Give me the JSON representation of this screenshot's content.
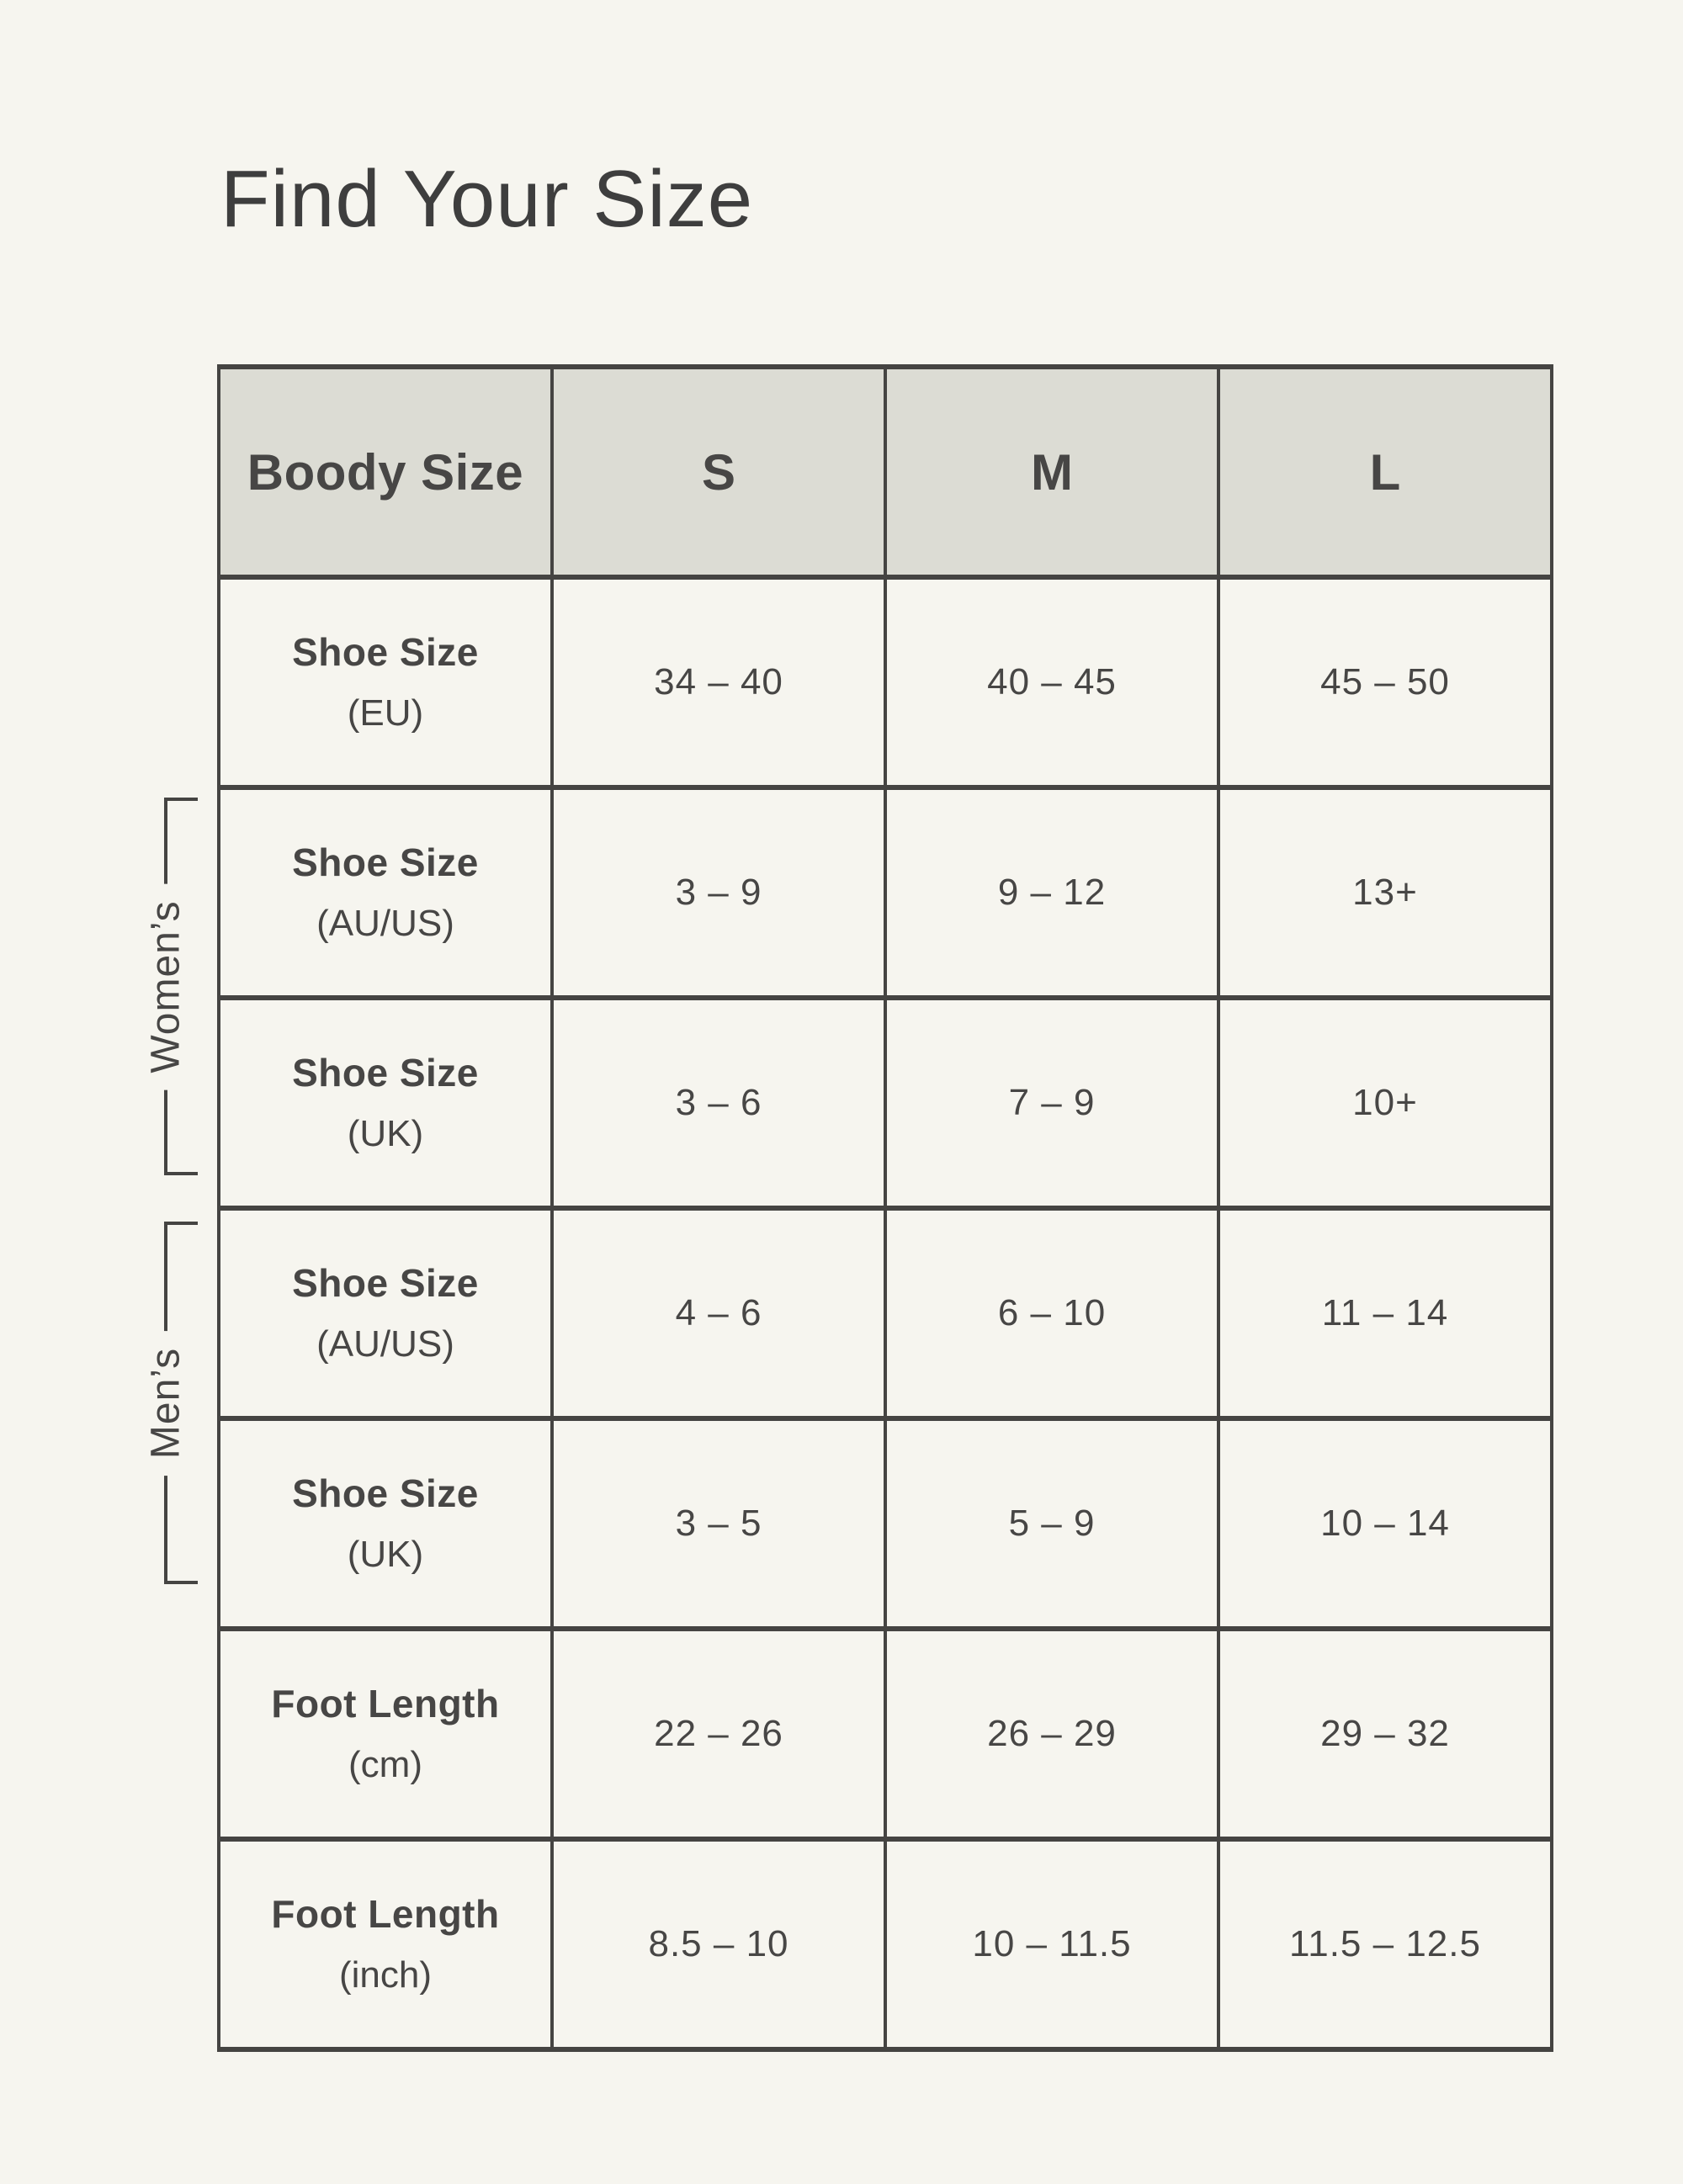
{
  "page": {
    "title": "Find Your Size"
  },
  "groups": {
    "womens": "Women’s",
    "mens": "Men’s"
  },
  "chart_data": {
    "type": "table",
    "title": "Find Your Size",
    "header": {
      "corner": "Boody Size",
      "columns": [
        "S",
        "M",
        "L"
      ]
    },
    "rows": [
      {
        "label": "Shoe Size",
        "sublabel": "(EU)",
        "group": "",
        "values": [
          "34 – 40",
          "40 – 45",
          "45 – 50"
        ]
      },
      {
        "label": "Shoe Size",
        "sublabel": "(AU/US)",
        "group": "womens",
        "values": [
          "3 – 9",
          "9 – 12",
          "13+"
        ]
      },
      {
        "label": "Shoe Size",
        "sublabel": "(UK)",
        "group": "womens",
        "values": [
          "3 – 6",
          "7 – 9",
          "10+"
        ]
      },
      {
        "label": "Shoe Size",
        "sublabel": "(AU/US)",
        "group": "mens",
        "values": [
          "4 – 6",
          "6 – 10",
          "11 – 14"
        ]
      },
      {
        "label": "Shoe Size",
        "sublabel": "(UK)",
        "group": "mens",
        "values": [
          "3 – 5",
          "5 – 9",
          "10 – 14"
        ]
      },
      {
        "label": "Foot Length",
        "sublabel": "(cm)",
        "group": "",
        "values": [
          "22 – 26",
          "26 – 29",
          "29 – 32"
        ]
      },
      {
        "label": "Foot Length",
        "sublabel": "(inch)",
        "group": "",
        "values": [
          "8.5 – 10",
          "10 – 11.5",
          "11.5 – 12.5"
        ]
      }
    ],
    "layout_hints": {
      "row_group_brackets": [
        {
          "group": "womens",
          "rows": [
            1,
            2
          ]
        },
        {
          "group": "mens",
          "rows": [
            3,
            4
          ]
        }
      ],
      "grid": "on",
      "header_position": "top"
    }
  },
  "theme": {
    "page_bg": "#f6f5ef",
    "header_bg": "#dcdcd4",
    "border_color": "#454442",
    "text_color": "#474645",
    "title_color": "#3e3e3e"
  }
}
